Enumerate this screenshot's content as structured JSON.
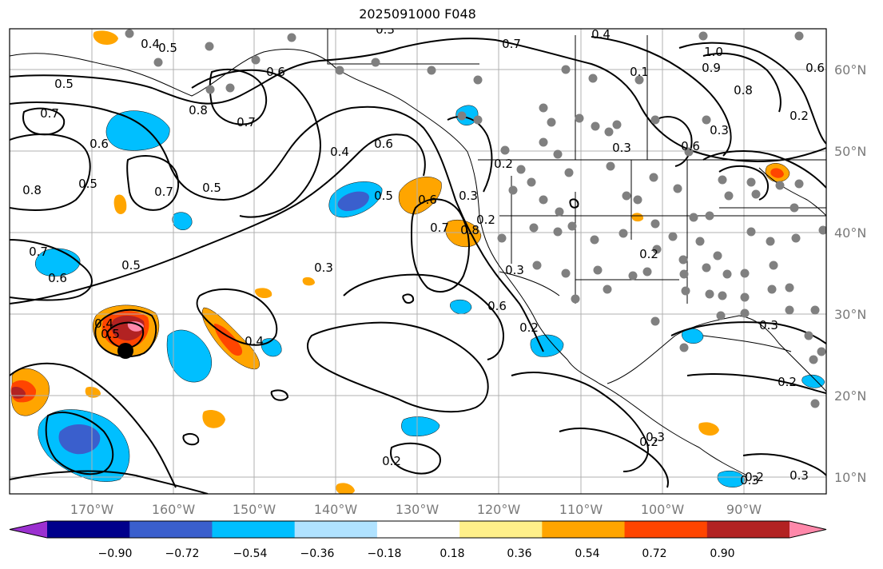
{
  "title": "2025091000 F048",
  "lon_labels": [
    "170°W",
    "160°W",
    "150°W",
    "140°W",
    "130°W",
    "120°W",
    "110°W",
    "100°W",
    "90°W"
  ],
  "lat_labels": [
    "10°N",
    "20°N",
    "30°N",
    "40°N",
    "50°N",
    "60°N"
  ],
  "colorbar": {
    "ticks": [
      "−0.90",
      "−0.72",
      "−0.54",
      "−0.36",
      "−0.18",
      "0.18",
      "0.36",
      "0.54",
      "0.72",
      "0.90"
    ],
    "colors": [
      "#9b30d0",
      "#00008b",
      "#3a5fcd",
      "#00bfff",
      "#b0e2ff",
      "#ffffff",
      "#fff08a",
      "#ffa500",
      "#ff4500",
      "#b22222",
      "#ff88aa"
    ]
  },
  "contour_labels": [
    "0.3",
    "0.4",
    "0.5",
    "0.5",
    "0.6",
    "0.7",
    "0.8",
    "0.7",
    "0.6",
    "0.8",
    "0.5",
    "0.7",
    "0.5",
    "0.4",
    "0.6",
    "0.5",
    "0.6",
    "0.7",
    "0.8",
    "0.7",
    "0.6",
    "0.5",
    "0.3",
    "0.4",
    "0.5",
    "0.4",
    "0.7",
    "0.6",
    "0.3",
    "0.2",
    "0.3",
    "0.6",
    "0.3",
    "0.4",
    "0.1",
    "1.0",
    "0.9",
    "0.8",
    "0.6",
    "0.2",
    "0.3",
    "0.2",
    "0.2",
    "0.3",
    "0.2",
    "0.3",
    "0.2",
    "0.2",
    "0.3",
    "0.2",
    "0.2",
    "0.3"
  ],
  "colors": {
    "contour": "#000000",
    "station": "#808080",
    "grid": "#b0b0b0"
  },
  "icons": {
    "storm_center": "storm-center-icon",
    "station": "station-dot-icon"
  }
}
